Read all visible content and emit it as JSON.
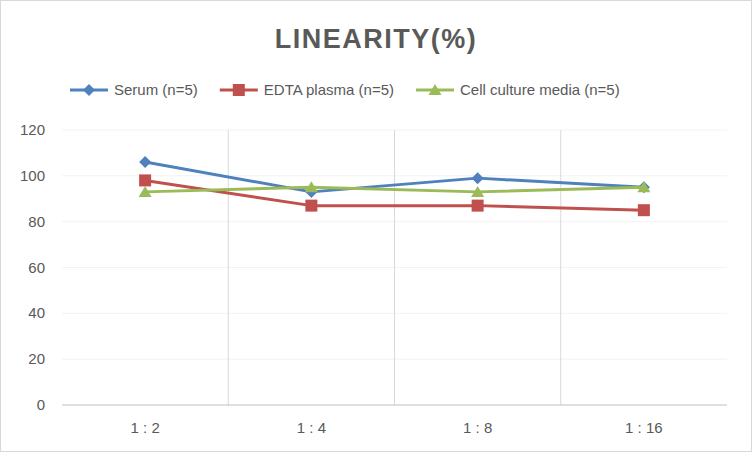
{
  "chart_data": {
    "type": "line",
    "title": "LINEARITY(%)",
    "categories": [
      "1 : 2",
      "1 : 4",
      "1 : 8",
      "1 : 16"
    ],
    "series": [
      {
        "name": "Serum (n=5)",
        "color": "#4f81bd",
        "marker": "diamond",
        "values": [
          106,
          93,
          99,
          95
        ]
      },
      {
        "name": "EDTA plasma (n=5)",
        "color": "#c0504d",
        "marker": "square",
        "values": [
          98,
          87,
          87,
          85
        ]
      },
      {
        "name": "Cell culture media (n=5)",
        "color": "#9bbb59",
        "marker": "triangle",
        "values": [
          93,
          95,
          93,
          95
        ]
      }
    ],
    "ylim": [
      0,
      120
    ],
    "yticks": [
      0,
      20,
      40,
      60,
      80,
      100,
      120
    ],
    "grid": true,
    "legend": "top"
  }
}
